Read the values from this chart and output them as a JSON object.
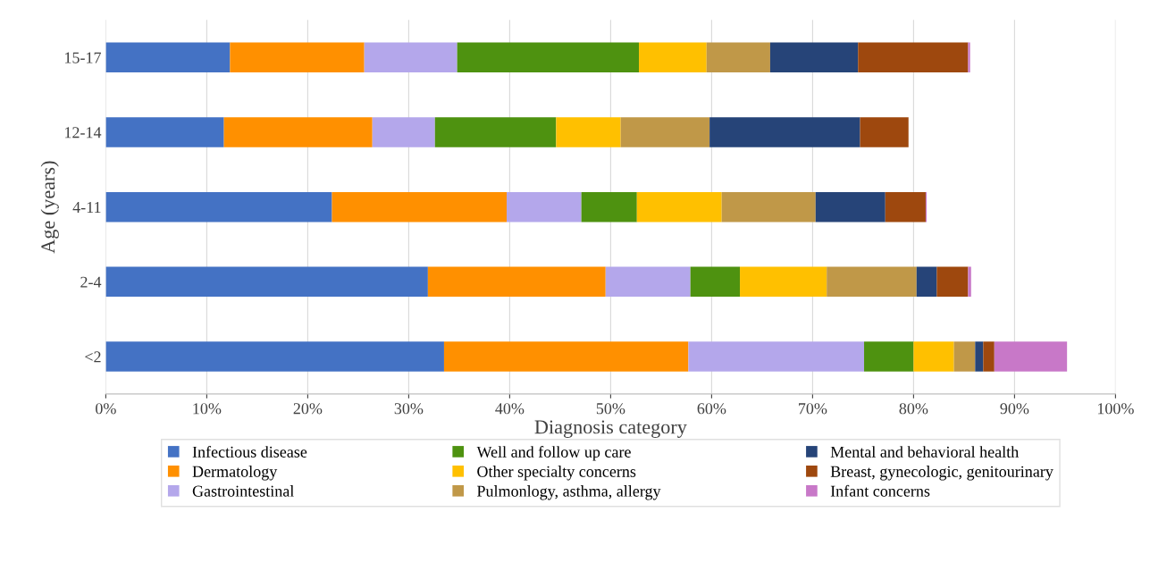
{
  "chart_data": {
    "type": "bar",
    "orientation": "horizontal",
    "stacked": true,
    "xlabel": "Diagnosis category",
    "ylabel": "Age (years)",
    "categories": [
      "15-17",
      "12-14",
      "4-11",
      "2-4",
      "<2"
    ],
    "series": [
      {
        "name": "Infectious disease",
        "color": "#4472c4",
        "values": [
          12.3,
          11.7,
          22.4,
          31.9,
          33.5
        ]
      },
      {
        "name": "Dermatology",
        "color": "#ff9000",
        "values": [
          13.3,
          14.7,
          17.3,
          17.6,
          24.2
        ]
      },
      {
        "name": "Gastrointestinal",
        "color": "#b4a7eb",
        "values": [
          9.2,
          6.2,
          7.4,
          8.4,
          17.4
        ]
      },
      {
        "name": "Well and follow up care",
        "color": "#4e9210",
        "values": [
          18.0,
          12.0,
          5.5,
          4.9,
          4.9
        ]
      },
      {
        "name": "Other specialty concerns",
        "color": "#ffc000",
        "values": [
          6.7,
          6.4,
          8.4,
          8.6,
          4.0
        ]
      },
      {
        "name": "Pulmonlogy, asthma, allergy",
        "color": "#c09848",
        "values": [
          6.3,
          8.8,
          9.3,
          8.9,
          2.1
        ]
      },
      {
        "name": "Mental and behavioral health",
        "color": "#264478",
        "values": [
          8.7,
          14.9,
          6.9,
          2.0,
          0.8
        ]
      },
      {
        "name": "Breast, gynecologic, genitourinary",
        "color": "#9e480e",
        "values": [
          10.9,
          4.8,
          4.0,
          3.1,
          1.1
        ]
      },
      {
        "name": "Infant concerns",
        "color": "#c878c8",
        "values": [
          0.2,
          0,
          0.1,
          0.3,
          7.2
        ]
      }
    ],
    "xlim": [
      0,
      100
    ],
    "xticks": [
      {
        "value": 0,
        "label": "0%"
      },
      {
        "value": 10,
        "label": "10%"
      },
      {
        "value": 20,
        "label": "20%"
      },
      {
        "value": 30,
        "label": "30%"
      },
      {
        "value": 40,
        "label": "40%"
      },
      {
        "value": 50,
        "label": "50%"
      },
      {
        "value": 60,
        "label": "60%"
      },
      {
        "value": 70,
        "label": "70%"
      },
      {
        "value": 80,
        "label": "80%"
      },
      {
        "value": 90,
        "label": "90%"
      },
      {
        "value": 100,
        "label": "100%"
      }
    ],
    "grid": "x",
    "legend": "bottom"
  }
}
